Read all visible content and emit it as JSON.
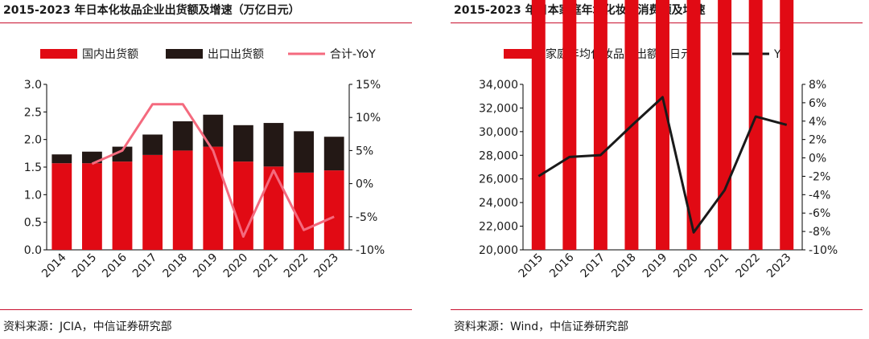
{
  "charts": [
    {
      "title": "2015-2023 年日本化妆品企业出货额及增速（万亿日元）",
      "source": "资料来源：JCIA，中信证券研究部"
    },
    {
      "title": "2015-2023 年日本家庭年均化妆品消费额及增速",
      "source": "资料来源：Wind，中信证券研究部"
    }
  ],
  "colors": {
    "red": "#e10a14",
    "dark": "#231815",
    "pink": "#f46a7e",
    "black": "#1a1a1a",
    "rule": "#c8102e"
  },
  "chart_data": [
    {
      "type": "bar",
      "stacked": true,
      "categories": [
        "2014",
        "2015",
        "2016",
        "2017",
        "2018",
        "2019",
        "2020",
        "2021",
        "2022",
        "2023"
      ],
      "series": [
        {
          "name": "国内出货额",
          "type": "bar",
          "axis": "left",
          "color": "#e10a14",
          "values": [
            1.57,
            1.57,
            1.6,
            1.72,
            1.8,
            1.87,
            1.6,
            1.51,
            1.4,
            1.44
          ]
        },
        {
          "name": "出口出货额",
          "type": "bar",
          "axis": "left",
          "color": "#231815",
          "values": [
            0.16,
            0.21,
            0.27,
            0.37,
            0.53,
            0.58,
            0.66,
            0.79,
            0.75,
            0.61
          ]
        },
        {
          "name": "合计-YoY",
          "type": "line",
          "axis": "right",
          "color": "#f46a7e",
          "values": [
            null,
            3.0,
            5.0,
            12.0,
            12.0,
            5.0,
            -8.0,
            2.0,
            -7.0,
            -5.0
          ]
        }
      ],
      "yleft": {
        "min": 0,
        "max": 3.0,
        "ticks": [
          "0.0",
          "0.5",
          "1.0",
          "1.5",
          "2.0",
          "2.5",
          "3.0"
        ]
      },
      "yright": {
        "min": -10,
        "max": 15,
        "ticks": [
          "-10%",
          "-5%",
          "0%",
          "5%",
          "10%",
          "15%"
        ]
      },
      "legend": "top"
    },
    {
      "type": "bar",
      "categories": [
        "2015",
        "2016",
        "2017",
        "2018",
        "2019",
        "2020",
        "2021",
        "2022",
        "2023"
      ],
      "series": [
        {
          "name": "家庭年均化妆品支出额（日元）",
          "type": "bar",
          "axis": "left",
          "color": "#e10a14",
          "values": [
            29700,
            29750,
            29800,
            30850,
            32900,
            30200,
            29200,
            30550,
            31600
          ]
        },
        {
          "name": "YoY",
          "type": "line",
          "axis": "right",
          "color": "#1a1a1a",
          "values": [
            -2.0,
            0.1,
            0.3,
            3.5,
            6.6,
            -8.1,
            -3.5,
            4.5,
            3.6
          ]
        }
      ],
      "yleft": {
        "min": 20000,
        "max": 34000,
        "ticks": [
          "20,000",
          "22,000",
          "24,000",
          "26,000",
          "28,000",
          "30,000",
          "32,000",
          "34,000"
        ]
      },
      "yright": {
        "min": -10,
        "max": 8,
        "ticks": [
          "-10%",
          "-8%",
          "-6%",
          "-4%",
          "-2%",
          "0%",
          "2%",
          "4%",
          "6%",
          "8%"
        ]
      },
      "legend": "top"
    }
  ]
}
